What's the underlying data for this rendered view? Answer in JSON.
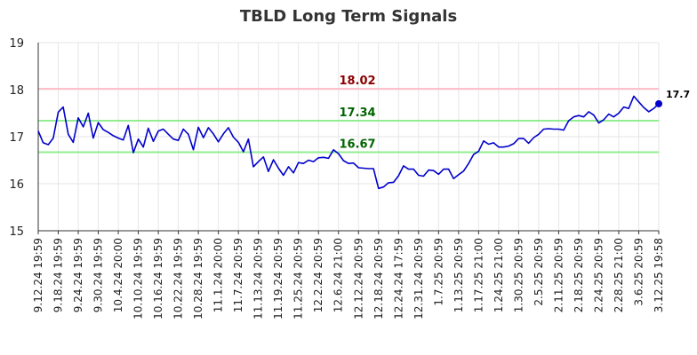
{
  "chart_data": {
    "type": "line",
    "title": "TBLD Long Term Signals",
    "ylim": [
      15,
      19
    ],
    "yticks": [
      15,
      16,
      17,
      18,
      19
    ],
    "xtick_labels": [
      "9.12.24 19:59",
      "9.18.24 19:59",
      "9.24.24 19:59",
      "9.30.24 19:59",
      "10.4.24 20:00",
      "10.10.24 19:59",
      "10.16.24 19:59",
      "10.22.24 19:59",
      "10.28.24 19:59",
      "11.1.24 20:00",
      "11.7.24 20:59",
      "11.13.24 20:59",
      "11.19.24 20:59",
      "11.25.24 20:59",
      "12.2.24 20:59",
      "12.6.24 21:00",
      "12.12.24 20:59",
      "12.18.24 20:59",
      "12.24.24 17:59",
      "12.31.24 20:59",
      "1.7.25 20:59",
      "1.13.25 20:59",
      "1.17.25 21:00",
      "1.24.25 21:00",
      "1.30.25 20:59",
      "2.5.25 20:59",
      "2.11.25 20:59",
      "2.18.25 20:59",
      "2.24.25 20:59",
      "2.28.25 21:00",
      "3.6.25 20:59",
      "3.12.25 19:58"
    ],
    "grid": true,
    "series": [
      {
        "color": "#0000cc",
        "values": [
          17.12,
          16.87,
          16.83,
          16.97,
          17.52,
          17.63,
          17.05,
          16.88,
          17.4,
          17.21,
          17.5,
          16.97,
          17.3,
          17.15,
          17.09,
          17.02,
          16.97,
          16.93,
          17.24,
          16.66,
          16.95,
          16.78,
          17.18,
          16.9,
          17.12,
          17.16,
          17.05,
          16.95,
          16.92,
          17.16,
          17.05,
          16.72,
          17.2,
          16.98,
          17.19,
          17.06,
          16.89,
          17.06,
          17.19,
          16.99,
          16.88,
          16.68,
          16.95,
          16.36,
          16.47,
          16.57,
          16.26,
          16.51,
          16.33,
          16.18,
          16.36,
          16.23,
          16.45,
          16.43,
          16.5,
          16.47,
          16.55,
          16.56,
          16.54,
          16.72,
          16.64,
          16.49,
          16.43,
          16.44,
          16.34,
          16.33,
          16.32,
          16.32,
          15.9,
          15.93,
          16.02,
          16.03,
          16.17,
          16.38,
          16.31,
          16.31,
          16.18,
          16.16,
          16.29,
          16.28,
          16.2,
          16.31,
          16.31,
          16.11,
          16.19,
          16.27,
          16.43,
          16.62,
          16.69,
          16.91,
          16.84,
          16.87,
          16.78,
          16.78,
          16.8,
          16.85,
          16.96,
          16.96,
          16.86,
          16.98,
          17.05,
          17.16,
          17.17,
          17.16,
          17.16,
          17.14,
          17.34,
          17.42,
          17.45,
          17.42,
          17.53,
          17.46,
          17.29,
          17.36,
          17.48,
          17.42,
          17.5,
          17.63,
          17.6,
          17.86,
          17.74,
          17.62,
          17.53,
          17.6,
          17.7
        ]
      }
    ],
    "reference_lines": [
      {
        "value": 18.02,
        "label": "18.02",
        "line_color": "#ffc0cb",
        "text_color": "#8b0000"
      },
      {
        "value": 17.34,
        "label": "17.34",
        "line_color": "#90ee90",
        "text_color": "#006400"
      },
      {
        "value": 16.67,
        "label": "16.67",
        "line_color": "#90ee90",
        "text_color": "#006400"
      }
    ],
    "last_value_label": "17.7"
  }
}
